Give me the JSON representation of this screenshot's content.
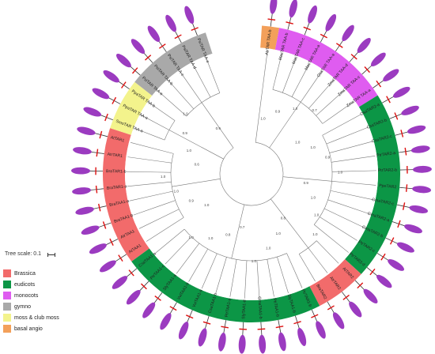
{
  "scale": {
    "label": "Tree scale: 0.1"
  },
  "legend": [
    {
      "label": "Brassica",
      "color": "#f26b6b"
    },
    {
      "label": "eudicots",
      "color": "#0c9646"
    },
    {
      "label": "monocots",
      "color": "#df5cf0"
    },
    {
      "label": "gymno",
      "color": "#a9a9a9"
    },
    {
      "label": "moss & club moss",
      "color": "#f3f38c"
    },
    {
      "label": "basal angio",
      "color": "#f3a05a"
    }
  ],
  "groups": [
    {
      "group": "basal angio",
      "color": "#f3a05a",
      "leaves": [
        "AtrTAR TAA-b"
      ]
    },
    {
      "group": "monocots",
      "color": "#df5cf0",
      "leaves": [
        "MacTAR TAA-b",
        "MacTAR TAA-c",
        "MacTAR TAA-a",
        "OsaTAR TAA-a",
        "ZmaTAR TAA-d",
        "ZmaTAR TAA-c",
        "ZmaTAR TAA-a"
      ]
    },
    {
      "group": "eudicots",
      "color": "#0c9646",
      "leaves": [
        "OsaTAR2-a",
        "CsaTAR2-b",
        "CsaTAR2-c",
        "PtrTAR2-a",
        "PtrTAR2-b",
        "PpeTAR2",
        "GmaTAR2-c",
        "GmaTAR2-a",
        "GmaTAR2-b",
        "PtrTAR2-c",
        "PtrTAR2-d"
      ]
    },
    {
      "group": "Brassica",
      "color": "#f26b6b",
      "leaves": [
        "AtTAR2",
        "AtrTAR2",
        "BraTAR2"
      ]
    },
    {
      "group": "eudicots",
      "color": "#0c9646",
      "leaves": [
        "PtrTAR1-b",
        "SlyTAA1-b",
        "PtrTAA1-b",
        "GmaTAA1-b",
        "SlyTAA1-d",
        "PtrTAA1-a",
        "CsaTAA1-b",
        "VviTAA1-a",
        "VviTAA1-b",
        "SlyTAA1-a",
        "PtrTAA1-c",
        "CsaTAA1-a"
      ]
    },
    {
      "group": "Brassica",
      "color": "#f26b6b",
      "leaves": [
        "AtTAA1",
        "AtrTAA1",
        "BraTAA1-b",
        "BraTAA1-a",
        "BraTAR1-a",
        "BraTAR1-b",
        "AtrTAR1",
        "AtTAR1"
      ]
    },
    {
      "group": "moss & club moss",
      "color": "#f3f38c",
      "leaves": [
        "SmoTAR TAA-a",
        "PpaTAR TAA-a",
        "PpaTAR TAA-b"
      ]
    },
    {
      "group": "gymno",
      "color": "#a9a9a9",
      "leaves": [
        "PsiTAR TAA-a",
        "PsiTAR TAA-b",
        "PsiTAR TAA-c",
        "PsiTAR TAA-d",
        "PsiTAR TAA-e"
      ]
    }
  ],
  "bootstrap_values": [
    "1.0",
    "0.9",
    "1.0",
    "0.7",
    "1.0",
    "1.0",
    "0.9",
    "1.0",
    "0.9",
    "1.0",
    "1.0",
    "1.0",
    "0.8",
    "1.0",
    "1.0",
    "1.0",
    "0.7",
    "0.8",
    "1.0",
    "1.0",
    "1.0",
    "0.9",
    "1.0",
    "1.0",
    "0.6",
    "1.0",
    "0.9",
    "1.0",
    "0.9"
  ]
}
